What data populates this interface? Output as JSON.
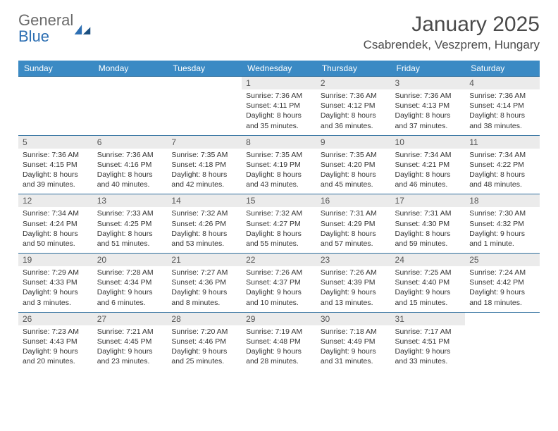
{
  "logo": {
    "text1": "General",
    "text2": "Blue"
  },
  "title": "January 2025",
  "location": "Csabrendek, Veszprem, Hungary",
  "header_bg": "#3b8ac4",
  "header_fg": "#ffffff",
  "date_bg": "#ebebeb",
  "rule_color": "#2f6f9e",
  "days": [
    "Sunday",
    "Monday",
    "Tuesday",
    "Wednesday",
    "Thursday",
    "Friday",
    "Saturday"
  ],
  "weeks": [
    [
      null,
      null,
      null,
      {
        "n": "1",
        "sr": "7:36 AM",
        "ss": "4:11 PM",
        "dl": "8 hours and 35 minutes."
      },
      {
        "n": "2",
        "sr": "7:36 AM",
        "ss": "4:12 PM",
        "dl": "8 hours and 36 minutes."
      },
      {
        "n": "3",
        "sr": "7:36 AM",
        "ss": "4:13 PM",
        "dl": "8 hours and 37 minutes."
      },
      {
        "n": "4",
        "sr": "7:36 AM",
        "ss": "4:14 PM",
        "dl": "8 hours and 38 minutes."
      }
    ],
    [
      {
        "n": "5",
        "sr": "7:36 AM",
        "ss": "4:15 PM",
        "dl": "8 hours and 39 minutes."
      },
      {
        "n": "6",
        "sr": "7:36 AM",
        "ss": "4:16 PM",
        "dl": "8 hours and 40 minutes."
      },
      {
        "n": "7",
        "sr": "7:35 AM",
        "ss": "4:18 PM",
        "dl": "8 hours and 42 minutes."
      },
      {
        "n": "8",
        "sr": "7:35 AM",
        "ss": "4:19 PM",
        "dl": "8 hours and 43 minutes."
      },
      {
        "n": "9",
        "sr": "7:35 AM",
        "ss": "4:20 PM",
        "dl": "8 hours and 45 minutes."
      },
      {
        "n": "10",
        "sr": "7:34 AM",
        "ss": "4:21 PM",
        "dl": "8 hours and 46 minutes."
      },
      {
        "n": "11",
        "sr": "7:34 AM",
        "ss": "4:22 PM",
        "dl": "8 hours and 48 minutes."
      }
    ],
    [
      {
        "n": "12",
        "sr": "7:34 AM",
        "ss": "4:24 PM",
        "dl": "8 hours and 50 minutes."
      },
      {
        "n": "13",
        "sr": "7:33 AM",
        "ss": "4:25 PM",
        "dl": "8 hours and 51 minutes."
      },
      {
        "n": "14",
        "sr": "7:32 AM",
        "ss": "4:26 PM",
        "dl": "8 hours and 53 minutes."
      },
      {
        "n": "15",
        "sr": "7:32 AM",
        "ss": "4:27 PM",
        "dl": "8 hours and 55 minutes."
      },
      {
        "n": "16",
        "sr": "7:31 AM",
        "ss": "4:29 PM",
        "dl": "8 hours and 57 minutes."
      },
      {
        "n": "17",
        "sr": "7:31 AM",
        "ss": "4:30 PM",
        "dl": "8 hours and 59 minutes."
      },
      {
        "n": "18",
        "sr": "7:30 AM",
        "ss": "4:32 PM",
        "dl": "9 hours and 1 minute."
      }
    ],
    [
      {
        "n": "19",
        "sr": "7:29 AM",
        "ss": "4:33 PM",
        "dl": "9 hours and 3 minutes."
      },
      {
        "n": "20",
        "sr": "7:28 AM",
        "ss": "4:34 PM",
        "dl": "9 hours and 6 minutes."
      },
      {
        "n": "21",
        "sr": "7:27 AM",
        "ss": "4:36 PM",
        "dl": "9 hours and 8 minutes."
      },
      {
        "n": "22",
        "sr": "7:26 AM",
        "ss": "4:37 PM",
        "dl": "9 hours and 10 minutes."
      },
      {
        "n": "23",
        "sr": "7:26 AM",
        "ss": "4:39 PM",
        "dl": "9 hours and 13 minutes."
      },
      {
        "n": "24",
        "sr": "7:25 AM",
        "ss": "4:40 PM",
        "dl": "9 hours and 15 minutes."
      },
      {
        "n": "25",
        "sr": "7:24 AM",
        "ss": "4:42 PM",
        "dl": "9 hours and 18 minutes."
      }
    ],
    [
      {
        "n": "26",
        "sr": "7:23 AM",
        "ss": "4:43 PM",
        "dl": "9 hours and 20 minutes."
      },
      {
        "n": "27",
        "sr": "7:21 AM",
        "ss": "4:45 PM",
        "dl": "9 hours and 23 minutes."
      },
      {
        "n": "28",
        "sr": "7:20 AM",
        "ss": "4:46 PM",
        "dl": "9 hours and 25 minutes."
      },
      {
        "n": "29",
        "sr": "7:19 AM",
        "ss": "4:48 PM",
        "dl": "9 hours and 28 minutes."
      },
      {
        "n": "30",
        "sr": "7:18 AM",
        "ss": "4:49 PM",
        "dl": "9 hours and 31 minutes."
      },
      {
        "n": "31",
        "sr": "7:17 AM",
        "ss": "4:51 PM",
        "dl": "9 hours and 33 minutes."
      },
      null
    ]
  ],
  "labels": {
    "sunrise": "Sunrise:",
    "sunset": "Sunset:",
    "daylight": "Daylight:"
  }
}
